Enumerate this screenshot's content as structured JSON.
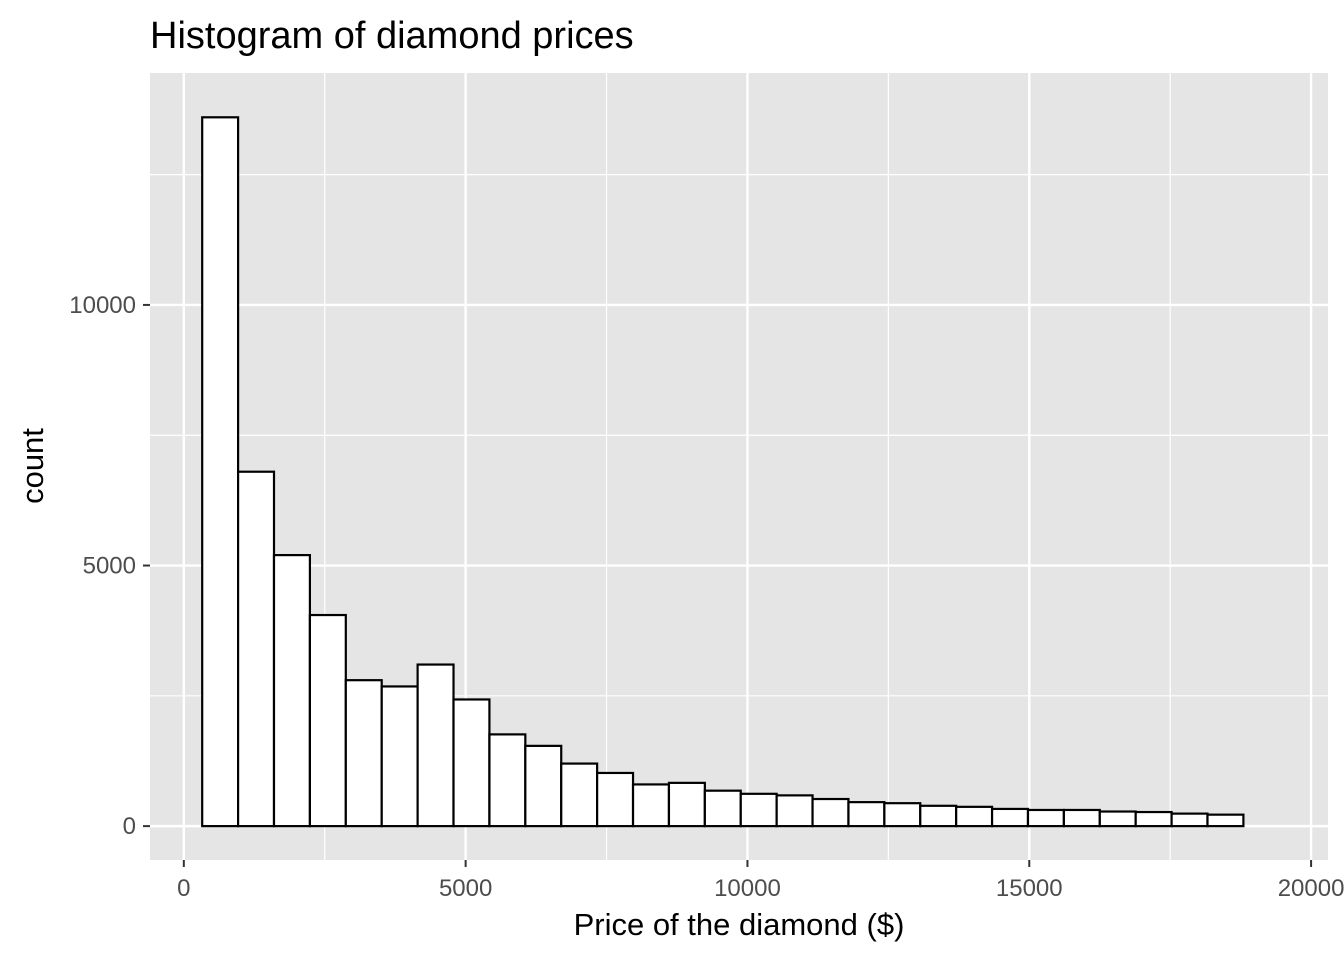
{
  "chart_data": {
    "type": "bar",
    "title": "Histogram of diamond prices",
    "xlabel": "Price of the diamond ($)",
    "ylabel": "count",
    "xlim": [
      -600,
      20300
    ],
    "ylim": [
      -650,
      14450
    ],
    "x_ticks": [
      0,
      5000,
      10000,
      15000,
      20000
    ],
    "y_ticks": [
      0,
      5000,
      10000
    ],
    "grid": true,
    "legend": "none",
    "bin_width": 637,
    "bin_start": 326,
    "values": [
      13600,
      6800,
      5200,
      4050,
      2800,
      2680,
      3100,
      2430,
      1760,
      1540,
      1200,
      1020,
      800,
      830,
      680,
      620,
      590,
      520,
      460,
      440,
      390,
      370,
      330,
      310,
      310,
      280,
      270,
      240,
      220,
      0
    ],
    "colors": {
      "panel": "#e5e5e5",
      "grid": "#ffffff",
      "bar_fill": "#ffffff",
      "bar_stroke": "#000000",
      "tick": "#333333"
    }
  }
}
